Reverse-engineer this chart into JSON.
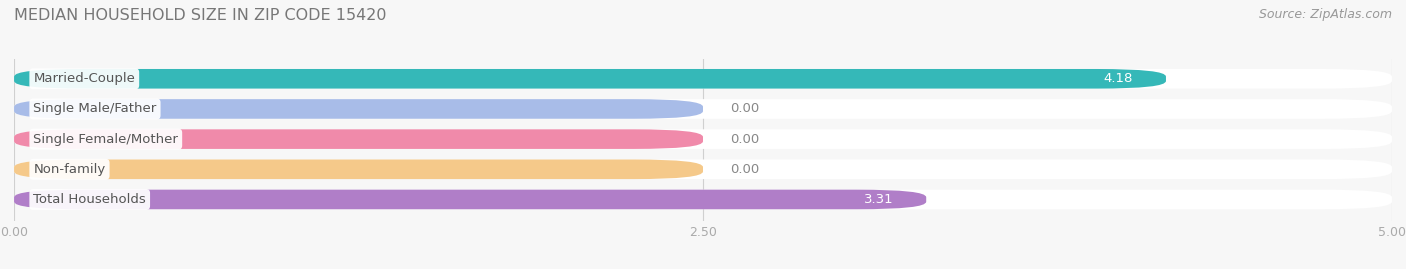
{
  "title": "MEDIAN HOUSEHOLD SIZE IN ZIP CODE 15420",
  "source": "Source: ZipAtlas.com",
  "categories": [
    "Married-Couple",
    "Single Male/Father",
    "Single Female/Mother",
    "Non-family",
    "Total Households"
  ],
  "values": [
    4.18,
    0.0,
    0.0,
    0.0,
    3.31
  ],
  "bar_colors": [
    "#35b8b8",
    "#a8bce8",
    "#f08aaa",
    "#f5c98a",
    "#b07ec8"
  ],
  "xlim": [
    0,
    5.0
  ],
  "xticks": [
    0.0,
    2.5,
    5.0
  ],
  "xtick_labels": [
    "0.00",
    "2.50",
    "5.00"
  ],
  "bg_color": "#f7f7f7",
  "row_bg_color": "#ffffff",
  "bar_bg_color": "#e8e8ec",
  "title_color": "#777777",
  "source_color": "#999999",
  "tick_color": "#aaaaaa",
  "label_text_color": "#555555",
  "value_text_color_inside": "#ffffff",
  "value_text_color_outside": "#888888",
  "zero_bar_width": 2.5
}
